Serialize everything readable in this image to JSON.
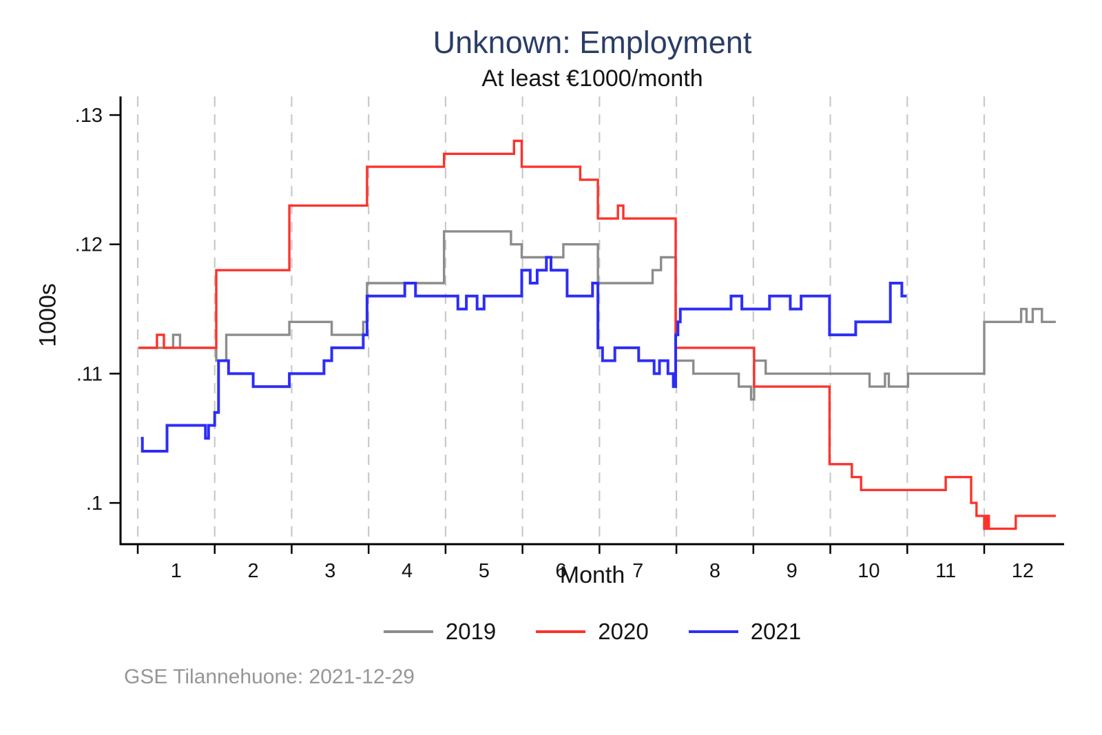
{
  "header": {
    "title": "Unknown: Employment",
    "subtitle": "At least €1000/month"
  },
  "footer": {
    "note": "GSE Tilannehuone: 2021-12-29"
  },
  "colors": {
    "title": "#2b3d66",
    "gridline": "#c9c9c9",
    "axis": "#000000",
    "series_2019": "#8c8c8c",
    "series_2020": "#fb332b",
    "series_2021": "#2d2df5",
    "footer_text": "#969696"
  },
  "chart_data": {
    "type": "line",
    "step": true,
    "title": "Unknown: Employment",
    "subtitle": "At least €1000/month",
    "xlabel": "Month",
    "ylabel": "1000s",
    "grid": "vertical-dashed",
    "legend_position": "bottom-center",
    "xlim": [
      0.78,
      13.04
    ],
    "ylim": [
      0.0968,
      0.1314
    ],
    "x_gridlines": [
      1,
      2,
      3,
      4,
      5,
      6,
      7,
      8,
      9,
      10,
      11,
      12
    ],
    "x_tick_labels": [
      "1",
      "2",
      "3",
      "4",
      "5",
      "6",
      "7",
      "8",
      "9",
      "10",
      "11",
      "12"
    ],
    "y_ticks": [
      {
        "v": 0.1,
        "label": ".1"
      },
      {
        "v": 0.11,
        "label": ".11"
      },
      {
        "v": 0.12,
        "label": ".12"
      },
      {
        "v": 0.13,
        "label": ".13"
      }
    ],
    "series": [
      {
        "name": "2019",
        "color_key": "series_2019",
        "end": 12.93,
        "points": [
          [
            1.01,
            0.112
          ],
          [
            1.46,
            0.113
          ],
          [
            1.55,
            0.112
          ],
          [
            2.02,
            0.111
          ],
          [
            2.15,
            0.113
          ],
          [
            2.97,
            0.114
          ],
          [
            3.52,
            0.113
          ],
          [
            3.93,
            0.114
          ],
          [
            3.98,
            0.117
          ],
          [
            4.98,
            0.121
          ],
          [
            5.85,
            0.12
          ],
          [
            5.99,
            0.119
          ],
          [
            6.53,
            0.12
          ],
          [
            6.98,
            0.117
          ],
          [
            7.69,
            0.118
          ],
          [
            7.8,
            0.119
          ],
          [
            7.99,
            0.111
          ],
          [
            8.22,
            0.11
          ],
          [
            8.81,
            0.109
          ],
          [
            8.97,
            0.108
          ],
          [
            9.01,
            0.111
          ],
          [
            9.16,
            0.11
          ],
          [
            10.51,
            0.109
          ],
          [
            10.71,
            0.11
          ],
          [
            10.76,
            0.109
          ],
          [
            11.01,
            0.11
          ],
          [
            12.0,
            0.114
          ],
          [
            12.48,
            0.115
          ],
          [
            12.55,
            0.114
          ],
          [
            12.63,
            0.115
          ],
          [
            12.75,
            0.114
          ]
        ]
      },
      {
        "name": "2020",
        "color_key": "series_2020",
        "end": 12.93,
        "points": [
          [
            1.01,
            0.112
          ],
          [
            1.25,
            0.113
          ],
          [
            1.34,
            0.112
          ],
          [
            2.02,
            0.118
          ],
          [
            2.97,
            0.123
          ],
          [
            3.98,
            0.126
          ],
          [
            4.98,
            0.127
          ],
          [
            5.89,
            0.128
          ],
          [
            5.99,
            0.126
          ],
          [
            6.75,
            0.125
          ],
          [
            6.98,
            0.122
          ],
          [
            7.24,
            0.123
          ],
          [
            7.31,
            0.122
          ],
          [
            7.99,
            0.112
          ],
          [
            9.01,
            0.109
          ],
          [
            9.99,
            0.103
          ],
          [
            10.28,
            0.102
          ],
          [
            10.4,
            0.101
          ],
          [
            11.5,
            0.102
          ],
          [
            11.83,
            0.1
          ],
          [
            11.9,
            0.099
          ],
          [
            12.0,
            0.098
          ],
          [
            12.03,
            0.099
          ],
          [
            12.06,
            0.098
          ],
          [
            12.41,
            0.099
          ]
        ]
      },
      {
        "name": "2021",
        "color_key": "series_2021",
        "end": 10.99,
        "points": [
          [
            1.04,
            0.105
          ],
          [
            1.06,
            0.104
          ],
          [
            1.38,
            0.106
          ],
          [
            1.88,
            0.105
          ],
          [
            1.92,
            0.106
          ],
          [
            2.0,
            0.107
          ],
          [
            2.05,
            0.111
          ],
          [
            2.18,
            0.11
          ],
          [
            2.5,
            0.109
          ],
          [
            2.97,
            0.11
          ],
          [
            3.42,
            0.111
          ],
          [
            3.52,
            0.112
          ],
          [
            3.93,
            0.113
          ],
          [
            3.98,
            0.116
          ],
          [
            4.47,
            0.117
          ],
          [
            4.61,
            0.116
          ],
          [
            5.16,
            0.115
          ],
          [
            5.27,
            0.116
          ],
          [
            5.41,
            0.115
          ],
          [
            5.5,
            0.116
          ],
          [
            5.99,
            0.118
          ],
          [
            6.1,
            0.117
          ],
          [
            6.19,
            0.118
          ],
          [
            6.31,
            0.119
          ],
          [
            6.37,
            0.118
          ],
          [
            6.58,
            0.116
          ],
          [
            6.91,
            0.117
          ],
          [
            6.98,
            0.112
          ],
          [
            7.04,
            0.111
          ],
          [
            7.2,
            0.112
          ],
          [
            7.51,
            0.111
          ],
          [
            7.71,
            0.11
          ],
          [
            7.78,
            0.111
          ],
          [
            7.89,
            0.11
          ],
          [
            7.96,
            0.109
          ],
          [
            7.99,
            0.113
          ],
          [
            8.02,
            0.114
          ],
          [
            8.05,
            0.115
          ],
          [
            8.71,
            0.116
          ],
          [
            8.85,
            0.115
          ],
          [
            9.21,
            0.116
          ],
          [
            9.48,
            0.115
          ],
          [
            9.62,
            0.116
          ],
          [
            9.99,
            0.113
          ],
          [
            10.33,
            0.114
          ],
          [
            10.78,
            0.117
          ],
          [
            10.93,
            0.116
          ]
        ]
      }
    ],
    "legend": [
      "2019",
      "2020",
      "2021"
    ]
  }
}
